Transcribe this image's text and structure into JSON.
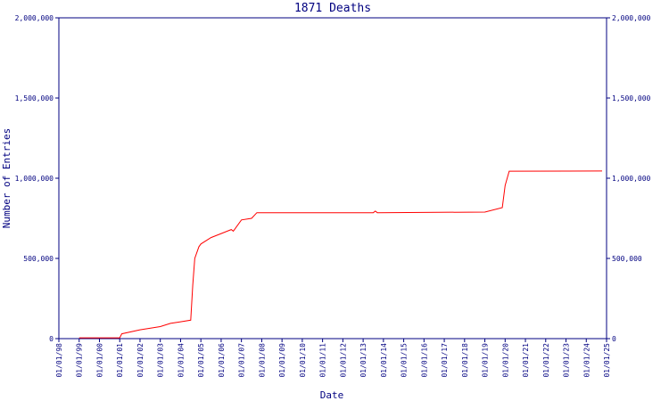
{
  "chart_data": {
    "type": "line",
    "title": "1871 Deaths",
    "x_label": "Date",
    "y_label": "Number of Entries",
    "xlim": [
      1998,
      2025
    ],
    "xticks": [
      {
        "value": 1998,
        "label": "01/01/98"
      },
      {
        "value": 1999,
        "label": "01/01/99"
      },
      {
        "value": 2000,
        "label": "01/01/00"
      },
      {
        "value": 2001,
        "label": "01/01/01"
      },
      {
        "value": 2002,
        "label": "01/01/02"
      },
      {
        "value": 2003,
        "label": "01/01/03"
      },
      {
        "value": 2004,
        "label": "01/01/04"
      },
      {
        "value": 2005,
        "label": "01/01/05"
      },
      {
        "value": 2006,
        "label": "01/01/06"
      },
      {
        "value": 2007,
        "label": "01/01/07"
      },
      {
        "value": 2008,
        "label": "01/01/08"
      },
      {
        "value": 2009,
        "label": "01/01/09"
      },
      {
        "value": 2010,
        "label": "01/01/10"
      },
      {
        "value": 2011,
        "label": "01/01/11"
      },
      {
        "value": 2012,
        "label": "01/01/12"
      },
      {
        "value": 2013,
        "label": "01/01/13"
      },
      {
        "value": 2014,
        "label": "01/01/14"
      },
      {
        "value": 2015,
        "label": "01/01/15"
      },
      {
        "value": 2016,
        "label": "01/01/16"
      },
      {
        "value": 2017,
        "label": "01/01/17"
      },
      {
        "value": 2018,
        "label": "01/01/18"
      },
      {
        "value": 2019,
        "label": "01/01/19"
      },
      {
        "value": 2020,
        "label": "01/01/20"
      },
      {
        "value": 2021,
        "label": "01/01/21"
      },
      {
        "value": 2022,
        "label": "01/01/22"
      },
      {
        "value": 2023,
        "label": "01/01/23"
      },
      {
        "value": 2024,
        "label": "01/01/24"
      },
      {
        "value": 2025,
        "label": "01/01/25"
      }
    ],
    "ylim": [
      0,
      2000000
    ],
    "yticks": [
      0,
      {
        "value": 500000,
        "label": "500,000"
      },
      {
        "value": 1000000,
        "label": "1,000,000"
      },
      {
        "value": 1500000,
        "label": "1,500,000"
      },
      {
        "value": 2000000,
        "label": "2,000,000"
      }
    ],
    "series": [
      {
        "name": "1871 Deaths",
        "color": "#ff0000",
        "x": [
          1999.0,
          2001.0,
          2001.1,
          2002.0,
          2003.0,
          2003.5,
          2004.0,
          2004.5,
          2004.6,
          2004.7,
          2004.9,
          2005.0,
          2005.5,
          2006.0,
          2006.5,
          2006.6,
          2007.0,
          2007.5,
          2007.76,
          2013.5,
          2013.6,
          2013.7,
          2019.0,
          2019.86,
          2020.0,
          2020.2,
          2024.78
        ],
        "values": [
          5000,
          5000,
          30000,
          55000,
          75000,
          95000,
          105000,
          115000,
          333000,
          500000,
          572000,
          590000,
          630000,
          655000,
          680000,
          670000,
          740000,
          750000,
          785000,
          785000,
          795000,
          785000,
          789000,
          817000,
          955000,
          1044000,
          1045000
        ]
      }
    ]
  }
}
